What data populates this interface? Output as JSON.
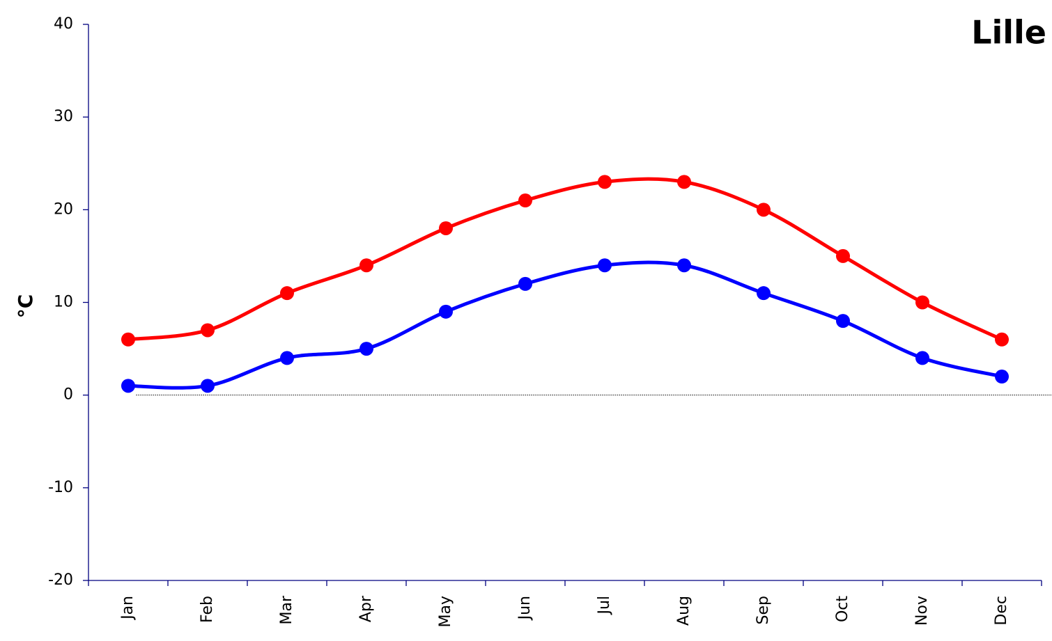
{
  "chart_data": {
    "type": "line",
    "title": "Lille",
    "y_label": "°C",
    "categories": [
      "Jan",
      "Feb",
      "Mar",
      "Apr",
      "May",
      "Jun",
      "Jul",
      "Aug",
      "Sep",
      "Oct",
      "Nov",
      "Dec"
    ],
    "series": [
      {
        "color": "#ff0000",
        "values": [
          6,
          7,
          11,
          14,
          18,
          21,
          23,
          23,
          20,
          15,
          10,
          6
        ]
      },
      {
        "color": "#0000ff",
        "values": [
          1,
          1,
          4,
          5,
          9,
          12,
          14,
          14,
          11,
          8,
          4,
          2
        ]
      }
    ],
    "ylim": [
      -20,
      40
    ],
    "yticks": [
      -20,
      -10,
      0,
      10,
      20,
      30,
      40
    ],
    "smooth": true,
    "zero_line": true
  }
}
